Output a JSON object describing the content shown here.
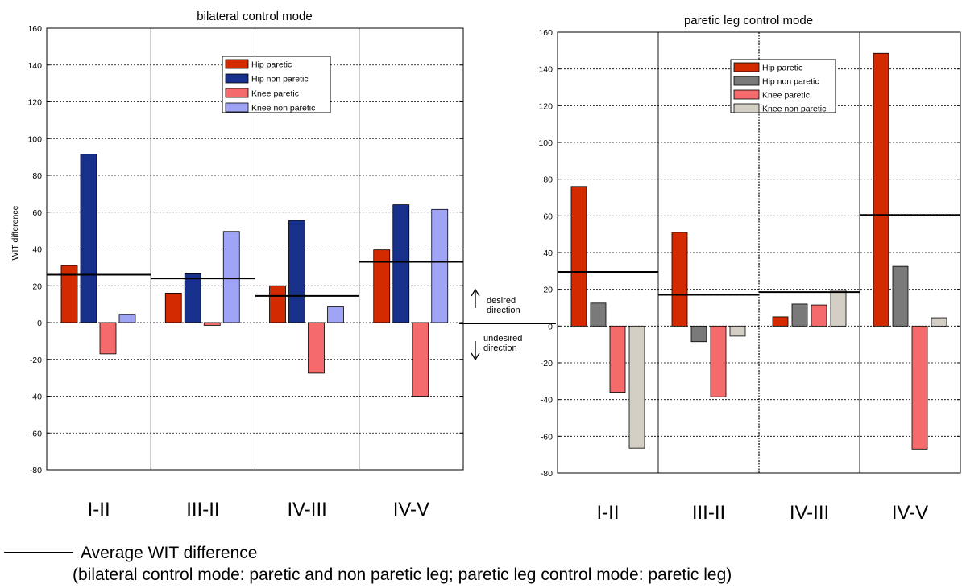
{
  "chart_data": [
    {
      "type": "bar",
      "title": "bilateral control mode",
      "ylabel": "WIT difference",
      "ylim": [
        -80,
        160
      ],
      "yticks": [
        -80,
        -60,
        -40,
        -20,
        0,
        20,
        40,
        60,
        80,
        100,
        120,
        140,
        160
      ],
      "grid": true,
      "legend_position": "top-right",
      "categories": [
        "I-II",
        "III-II",
        "IV-III",
        "IV-V"
      ],
      "series": [
        {
          "name": "Hip paretic",
          "color": "#d42a00",
          "values": [
            31,
            16,
            20,
            39.5
          ]
        },
        {
          "name": "Hip non paretic",
          "color": "#16308c",
          "values": [
            91.5,
            26.5,
            55.5,
            64
          ]
        },
        {
          "name": "Knee paretic",
          "color": "#f56a6a",
          "values": [
            -17,
            -1.5,
            -27.5,
            -40
          ]
        },
        {
          "name": "Knee non paretic",
          "color": "#a0a4f4",
          "values": [
            4.5,
            49.5,
            8.5,
            61.5
          ]
        }
      ],
      "average_values": [
        26,
        24,
        14.5,
        33
      ]
    },
    {
      "type": "bar",
      "title": "paretic leg control  mode",
      "ylabel": "",
      "ylim": [
        -80,
        160
      ],
      "yticks": [
        -80,
        -60,
        -40,
        -20,
        0,
        20,
        40,
        60,
        80,
        100,
        120,
        140,
        160
      ],
      "grid": true,
      "legend_position": "top-right",
      "categories": [
        "I-II",
        "III-II",
        "IV-III",
        "IV-V"
      ],
      "series": [
        {
          "name": "Hip paretic",
          "color": "#d42a00",
          "values": [
            76,
            51,
            5,
            148.5
          ]
        },
        {
          "name": "Hip non paretic",
          "color": "#7a7a7a",
          "values": [
            12.5,
            -8.5,
            12,
            32.5
          ]
        },
        {
          "name": "Knee paretic",
          "color": "#f56a6a",
          "values": [
            -36,
            -38.5,
            11.5,
            -67
          ]
        },
        {
          "name": "Knee non paretic",
          "color": "#d4cfc4",
          "values": [
            -66.5,
            -5.5,
            19.5,
            4.5
          ]
        }
      ],
      "average_values": [
        29.5,
        17,
        18.5,
        60.5
      ]
    }
  ],
  "direction": {
    "desired": [
      "desired",
      "direction"
    ],
    "undesired": [
      "undesired",
      "direction"
    ]
  },
  "caption": {
    "line1": "Average WIT difference",
    "line2": "(bilateral control mode: paretic and non paretic leg; paretic leg control mode: paretic leg)"
  }
}
